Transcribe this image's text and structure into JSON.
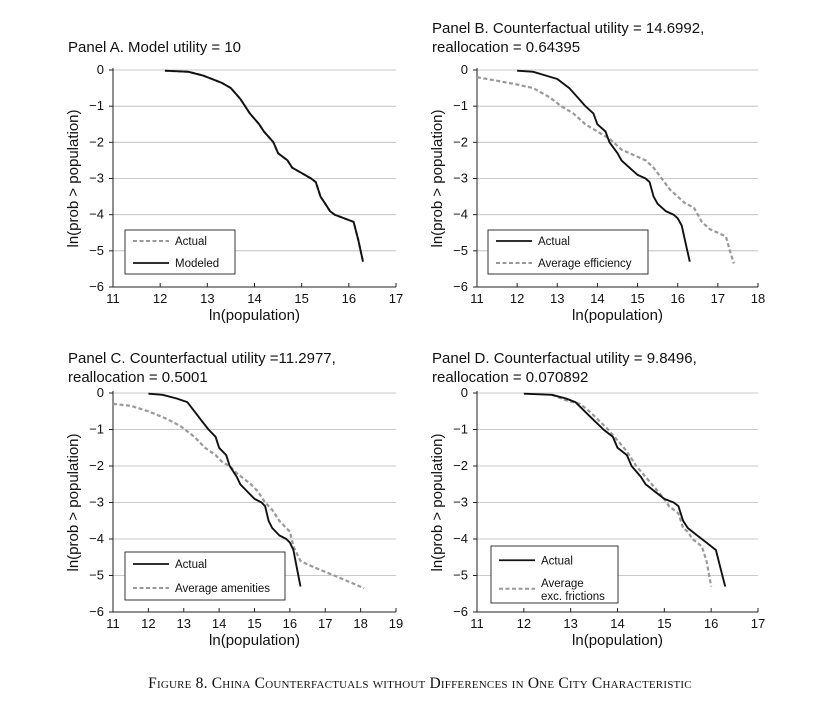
{
  "caption": "Figure 8. China Counterfactuals without Differences in One City Characteristic",
  "chart_data": [
    {
      "type": "line",
      "title": "Panel A. Model utility = 10",
      "xlabel": "ln(population)",
      "ylabel": "ln(prob > population)",
      "xlim": [
        11,
        17
      ],
      "ylim": [
        -6,
        0
      ],
      "xticks": [
        11,
        12,
        13,
        14,
        15,
        16,
        17
      ],
      "yticks": [
        0,
        -1,
        -2,
        -3,
        -4,
        -5,
        -6
      ],
      "grid": "horizontal",
      "legend_position": "bottom-left",
      "series": [
        {
          "name": "Actual",
          "style": "dashed",
          "color": "#999999",
          "x": [
            12.1,
            12.6,
            12.9,
            13.1,
            13.3,
            13.5,
            13.7,
            13.8,
            13.9,
            14.1,
            14.2,
            14.4,
            14.5,
            14.7,
            14.8,
            15.0,
            15.2,
            15.3,
            15.4,
            15.5,
            15.6,
            15.7,
            15.9,
            16.1,
            16.2,
            16.3
          ],
          "y": [
            -0.02,
            -0.05,
            -0.15,
            -0.25,
            -0.35,
            -0.5,
            -0.8,
            -1.0,
            -1.2,
            -1.5,
            -1.7,
            -2.0,
            -2.3,
            -2.5,
            -2.7,
            -2.85,
            -3.0,
            -3.1,
            -3.5,
            -3.7,
            -3.9,
            -4.0,
            -4.1,
            -4.2,
            -4.7,
            -5.3
          ]
        },
        {
          "name": "Modeled",
          "style": "solid",
          "color": "#111111",
          "x": [
            12.1,
            12.6,
            12.9,
            13.1,
            13.3,
            13.5,
            13.7,
            13.8,
            13.9,
            14.1,
            14.2,
            14.4,
            14.5,
            14.7,
            14.8,
            15.0,
            15.2,
            15.3,
            15.4,
            15.5,
            15.6,
            15.7,
            15.9,
            16.1,
            16.2,
            16.3
          ],
          "y": [
            -0.02,
            -0.05,
            -0.15,
            -0.25,
            -0.35,
            -0.5,
            -0.8,
            -1.0,
            -1.2,
            -1.5,
            -1.7,
            -2.0,
            -2.3,
            -2.5,
            -2.7,
            -2.85,
            -3.0,
            -3.1,
            -3.5,
            -3.7,
            -3.9,
            -4.0,
            -4.1,
            -4.2,
            -4.7,
            -5.3
          ]
        }
      ]
    },
    {
      "type": "line",
      "title": "Panel B. Counterfactual utility = 14.6992, reallocation = 0.64395",
      "xlabel": "ln(population)",
      "ylabel": "ln(prob > population)",
      "xlim": [
        11,
        18
      ],
      "ylim": [
        -6,
        0
      ],
      "xticks": [
        11,
        12,
        13,
        14,
        15,
        16,
        17,
        18
      ],
      "yticks": [
        0,
        -1,
        -2,
        -3,
        -4,
        -5,
        -6
      ],
      "grid": "horizontal",
      "legend_position": "bottom-left",
      "series": [
        {
          "name": "Actual",
          "style": "solid",
          "color": "#111111",
          "x": [
            12.0,
            12.4,
            12.7,
            13.0,
            13.3,
            13.5,
            13.7,
            13.9,
            14.0,
            14.2,
            14.3,
            14.5,
            14.6,
            14.8,
            15.0,
            15.2,
            15.3,
            15.4,
            15.5,
            15.7,
            15.9,
            16.0,
            16.1,
            16.2,
            16.3
          ],
          "y": [
            -0.02,
            -0.05,
            -0.15,
            -0.25,
            -0.5,
            -0.75,
            -1.0,
            -1.2,
            -1.5,
            -1.7,
            -2.0,
            -2.3,
            -2.5,
            -2.7,
            -2.9,
            -3.0,
            -3.1,
            -3.5,
            -3.7,
            -3.9,
            -4.0,
            -4.1,
            -4.3,
            -4.8,
            -5.3
          ]
        },
        {
          "name": "Average efficiency",
          "style": "dashed",
          "color": "#999999",
          "x": [
            11.0,
            11.5,
            12.0,
            12.4,
            12.8,
            13.1,
            13.4,
            13.7,
            14.0,
            14.3,
            14.6,
            14.9,
            15.2,
            15.4,
            15.6,
            15.8,
            16.0,
            16.2,
            16.4,
            16.6,
            16.8,
            17.0,
            17.2,
            17.3,
            17.4
          ],
          "y": [
            -0.2,
            -0.3,
            -0.4,
            -0.5,
            -0.75,
            -1.0,
            -1.2,
            -1.5,
            -1.7,
            -1.9,
            -2.2,
            -2.35,
            -2.5,
            -2.7,
            -3.0,
            -3.3,
            -3.5,
            -3.7,
            -3.8,
            -4.2,
            -4.4,
            -4.5,
            -4.6,
            -5.0,
            -5.35
          ]
        }
      ]
    },
    {
      "type": "line",
      "title": "Panel C. Counterfactual utility =11.2977, reallocation = 0.5001",
      "xlabel": "ln(population)",
      "ylabel": "ln(prob > population)",
      "xlim": [
        11,
        19
      ],
      "ylim": [
        -6,
        0
      ],
      "xticks": [
        11,
        12,
        13,
        14,
        15,
        16,
        17,
        18,
        19
      ],
      "yticks": [
        0,
        -1,
        -2,
        -3,
        -4,
        -5,
        -6
      ],
      "grid": "horizontal",
      "legend_position": "bottom-left",
      "series": [
        {
          "name": "Actual",
          "style": "solid",
          "color": "#111111",
          "x": [
            12.0,
            12.4,
            12.8,
            13.1,
            13.3,
            13.5,
            13.7,
            13.9,
            14.0,
            14.2,
            14.3,
            14.5,
            14.6,
            14.8,
            15.0,
            15.2,
            15.3,
            15.4,
            15.5,
            15.7,
            15.9,
            16.0,
            16.1,
            16.2,
            16.3
          ],
          "y": [
            -0.02,
            -0.05,
            -0.15,
            -0.25,
            -0.5,
            -0.75,
            -1.0,
            -1.2,
            -1.5,
            -1.7,
            -2.0,
            -2.3,
            -2.5,
            -2.7,
            -2.9,
            -3.0,
            -3.1,
            -3.5,
            -3.7,
            -3.9,
            -4.0,
            -4.1,
            -4.3,
            -4.8,
            -5.3
          ]
        },
        {
          "name": "Average amenities",
          "style": "dashed",
          "color": "#999999",
          "x": [
            11.0,
            11.5,
            12.0,
            12.5,
            12.9,
            13.3,
            13.6,
            13.9,
            14.1,
            14.3,
            14.5,
            14.7,
            14.9,
            15.1,
            15.3,
            15.5,
            15.7,
            15.9,
            16.0,
            16.1,
            16.2,
            16.3,
            16.5,
            17.0,
            17.5,
            18.1
          ],
          "y": [
            -0.3,
            -0.35,
            -0.5,
            -0.7,
            -0.9,
            -1.2,
            -1.5,
            -1.7,
            -1.9,
            -2.0,
            -2.2,
            -2.35,
            -2.5,
            -2.7,
            -3.0,
            -3.2,
            -3.5,
            -3.7,
            -3.8,
            -4.2,
            -4.4,
            -4.6,
            -4.7,
            -4.9,
            -5.1,
            -5.35
          ]
        }
      ]
    },
    {
      "type": "line",
      "title": "Panel D. Counterfactual utility = 9.8496, reallocation = 0.070892",
      "xlabel": "ln(population)",
      "ylabel": "ln(prob > population)",
      "xlim": [
        11,
        17
      ],
      "ylim": [
        -6,
        0
      ],
      "xticks": [
        11,
        12,
        13,
        14,
        15,
        16,
        17
      ],
      "yticks": [
        0,
        -1,
        -2,
        -3,
        -4,
        -5,
        -6
      ],
      "grid": "horizontal",
      "legend_position": "bottom-left",
      "series": [
        {
          "name": "Actual",
          "style": "solid",
          "color": "#111111",
          "x": [
            12.0,
            12.6,
            12.9,
            13.1,
            13.3,
            13.5,
            13.7,
            13.9,
            14.0,
            14.2,
            14.3,
            14.5,
            14.6,
            14.8,
            15.0,
            15.2,
            15.3,
            15.4,
            15.5,
            15.7,
            15.9,
            16.1,
            16.2,
            16.3
          ],
          "y": [
            -0.02,
            -0.05,
            -0.15,
            -0.25,
            -0.5,
            -0.75,
            -1.0,
            -1.2,
            -1.5,
            -1.7,
            -2.0,
            -2.3,
            -2.5,
            -2.7,
            -2.9,
            -3.0,
            -3.1,
            -3.5,
            -3.7,
            -3.9,
            -4.1,
            -4.3,
            -4.8,
            -5.3
          ]
        },
        {
          "name": "Average exc. frictions",
          "style": "dashed",
          "color": "#999999",
          "x": [
            12.6,
            12.9,
            13.2,
            13.4,
            13.6,
            13.8,
            14.0,
            14.2,
            14.4,
            14.6,
            14.8,
            15.0,
            15.1,
            15.3,
            15.4,
            15.5,
            15.6,
            15.8,
            15.9,
            16.0
          ],
          "y": [
            -0.05,
            -0.2,
            -0.3,
            -0.5,
            -0.75,
            -1.0,
            -1.3,
            -1.6,
            -2.0,
            -2.3,
            -2.6,
            -2.9,
            -3.1,
            -3.3,
            -3.7,
            -3.8,
            -4.0,
            -4.2,
            -4.6,
            -5.3
          ]
        }
      ]
    }
  ]
}
